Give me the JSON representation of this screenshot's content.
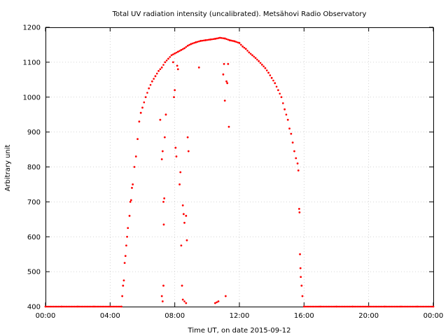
{
  "chart_data": {
    "type": "scatter",
    "title": "Total UV radiation intensity (uncalibrated). Metsähovi Radio Observatory",
    "xlabel": "Time UT, on date 2015-09-12",
    "ylabel": "Arbitrary unit",
    "x_unit": "hours UT",
    "xlim": [
      0,
      24
    ],
    "ylim": [
      400,
      1200
    ],
    "grid": true,
    "legend": "none",
    "x_ticks": [
      {
        "value": 0,
        "label": "00:00"
      },
      {
        "value": 4,
        "label": "04:00"
      },
      {
        "value": 8,
        "label": "08:00"
      },
      {
        "value": 12,
        "label": "12:00"
      },
      {
        "value": 16,
        "label": "16:00"
      },
      {
        "value": 20,
        "label": "20:00"
      },
      {
        "value": 24,
        "label": "00:00"
      }
    ],
    "y_ticks": [
      {
        "value": 400,
        "label": "400"
      },
      {
        "value": 500,
        "label": "500"
      },
      {
        "value": 600,
        "label": "600"
      },
      {
        "value": 700,
        "label": "700"
      },
      {
        "value": 800,
        "label": "800"
      },
      {
        "value": 900,
        "label": "900"
      },
      {
        "value": 1000,
        "label": "1000"
      },
      {
        "value": 1100,
        "label": "1100"
      },
      {
        "value": 1200,
        "label": "1200"
      }
    ],
    "series": [
      {
        "color": "#ff0000",
        "points": [
          [
            0.0,
            400
          ],
          [
            1.0,
            400
          ],
          [
            2.0,
            400
          ],
          [
            3.0,
            400
          ],
          [
            4.0,
            400
          ],
          [
            4.7,
            400
          ],
          [
            4.75,
            430
          ],
          [
            4.8,
            460
          ],
          [
            4.85,
            475
          ],
          [
            4.9,
            525
          ],
          [
            4.95,
            545
          ],
          [
            5.0,
            575
          ],
          [
            5.05,
            600
          ],
          [
            5.1,
            625
          ],
          [
            5.2,
            660
          ],
          [
            5.25,
            700
          ],
          [
            5.3,
            705
          ],
          [
            5.35,
            740
          ],
          [
            5.4,
            750
          ],
          [
            5.5,
            800
          ],
          [
            5.6,
            830
          ],
          [
            5.7,
            880
          ],
          [
            5.8,
            930
          ],
          [
            5.9,
            955
          ],
          [
            6.0,
            970
          ],
          [
            6.2,
            1000
          ],
          [
            6.4,
            1025
          ],
          [
            6.6,
            1045
          ],
          [
            6.8,
            1060
          ],
          [
            7.0,
            1075
          ],
          [
            7.2,
            1085
          ],
          [
            7.4,
            1100
          ],
          [
            7.6,
            1110
          ],
          [
            7.8,
            1120
          ],
          [
            8.0,
            1125
          ],
          [
            8.2,
            1130
          ],
          [
            8.4,
            1135
          ],
          [
            8.6,
            1140
          ],
          [
            8.8,
            1147
          ],
          [
            9.0,
            1152
          ],
          [
            9.3,
            1157
          ],
          [
            9.6,
            1161
          ],
          [
            9.9,
            1163
          ],
          [
            10.2,
            1165
          ],
          [
            10.5,
            1167
          ],
          [
            10.8,
            1170
          ],
          [
            11.1,
            1168
          ],
          [
            11.4,
            1163
          ],
          [
            11.7,
            1160
          ],
          [
            12.0,
            1155
          ],
          [
            12.2,
            1145
          ],
          [
            12.4,
            1138
          ],
          [
            12.6,
            1128
          ],
          [
            12.8,
            1120
          ],
          [
            13.0,
            1112
          ],
          [
            13.2,
            1103
          ],
          [
            13.4,
            1093
          ],
          [
            13.6,
            1083
          ],
          [
            13.8,
            1070
          ],
          [
            14.0,
            1055
          ],
          [
            14.2,
            1040
          ],
          [
            14.4,
            1020
          ],
          [
            14.6,
            1000
          ],
          [
            14.8,
            965
          ],
          [
            15.0,
            935
          ],
          [
            15.1,
            910
          ],
          [
            15.2,
            895
          ],
          [
            15.3,
            870
          ],
          [
            15.4,
            845
          ],
          [
            15.5,
            825
          ],
          [
            15.6,
            810
          ],
          [
            15.65,
            790
          ],
          [
            15.7,
            680
          ],
          [
            15.72,
            670
          ],
          [
            15.75,
            550
          ],
          [
            15.78,
            510
          ],
          [
            15.8,
            485
          ],
          [
            15.85,
            460
          ],
          [
            15.9,
            430
          ],
          [
            16.0,
            400
          ],
          [
            17.0,
            400
          ],
          [
            18.0,
            400
          ],
          [
            19.0,
            400
          ],
          [
            20.0,
            400
          ],
          [
            21.0,
            400
          ],
          [
            22.0,
            400
          ],
          [
            23.0,
            400
          ],
          [
            24.0,
            400
          ],
          [
            7.1,
            935
          ],
          [
            7.2,
            822
          ],
          [
            7.25,
            845
          ],
          [
            7.3,
            700
          ],
          [
            7.32,
            635
          ],
          [
            7.35,
            710
          ],
          [
            7.38,
            885
          ],
          [
            7.45,
            950
          ],
          [
            7.3,
            460
          ],
          [
            7.2,
            430
          ],
          [
            7.25,
            415
          ],
          [
            7.9,
            1100
          ],
          [
            7.95,
            1000
          ],
          [
            8.0,
            1020
          ],
          [
            8.05,
            855
          ],
          [
            8.1,
            830
          ],
          [
            8.15,
            1090
          ],
          [
            8.2,
            1080
          ],
          [
            8.3,
            750
          ],
          [
            8.35,
            785
          ],
          [
            8.4,
            575
          ],
          [
            8.45,
            460
          ],
          [
            8.5,
            690
          ],
          [
            8.55,
            665
          ],
          [
            8.6,
            640
          ],
          [
            8.7,
            660
          ],
          [
            8.75,
            590
          ],
          [
            8.8,
            885
          ],
          [
            8.85,
            845
          ],
          [
            8.5,
            420
          ],
          [
            8.7,
            410
          ],
          [
            9.5,
            1085
          ],
          [
            10.5,
            410
          ],
          [
            10.7,
            415
          ],
          [
            11.0,
            1065
          ],
          [
            11.05,
            1095
          ],
          [
            11.1,
            990
          ],
          [
            11.2,
            1045
          ],
          [
            11.25,
            1040
          ],
          [
            11.3,
            1095
          ],
          [
            11.35,
            915
          ],
          [
            11.15,
            430
          ]
        ]
      }
    ]
  }
}
